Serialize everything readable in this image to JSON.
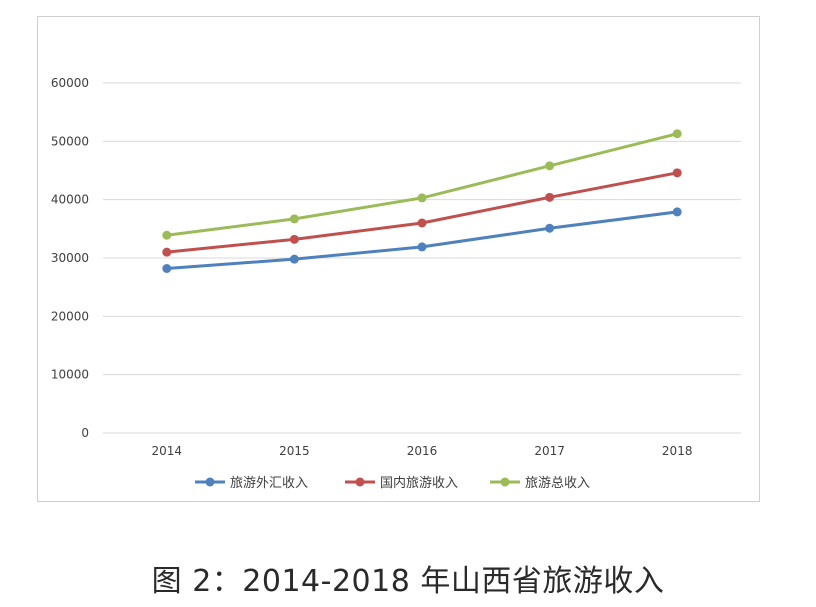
{
  "caption": "图 2：2014-2018 年山西省旅游收入",
  "chart_data": {
    "type": "line",
    "title": "",
    "xlabel": "",
    "ylabel": "",
    "categories": [
      "2014",
      "2015",
      "2016",
      "2017",
      "2018"
    ],
    "ylim": [
      0,
      60000
    ],
    "yticks": [
      "0",
      "10000",
      "20000",
      "30000",
      "40000",
      "50000",
      "60000"
    ],
    "grid": true,
    "legend_position": "bottom",
    "series": [
      {
        "name": "旅游外汇收入",
        "color": "#4f81bd",
        "values": [
          28200,
          29800,
          31900,
          35100,
          37900
        ]
      },
      {
        "name": "国内旅游收入",
        "color": "#c0504d",
        "values": [
          31000,
          33200,
          36000,
          40400,
          44600
        ]
      },
      {
        "name": "旅游总收入",
        "color": "#9bbb59",
        "values": [
          33900,
          36700,
          40300,
          45800,
          51300
        ]
      }
    ]
  }
}
